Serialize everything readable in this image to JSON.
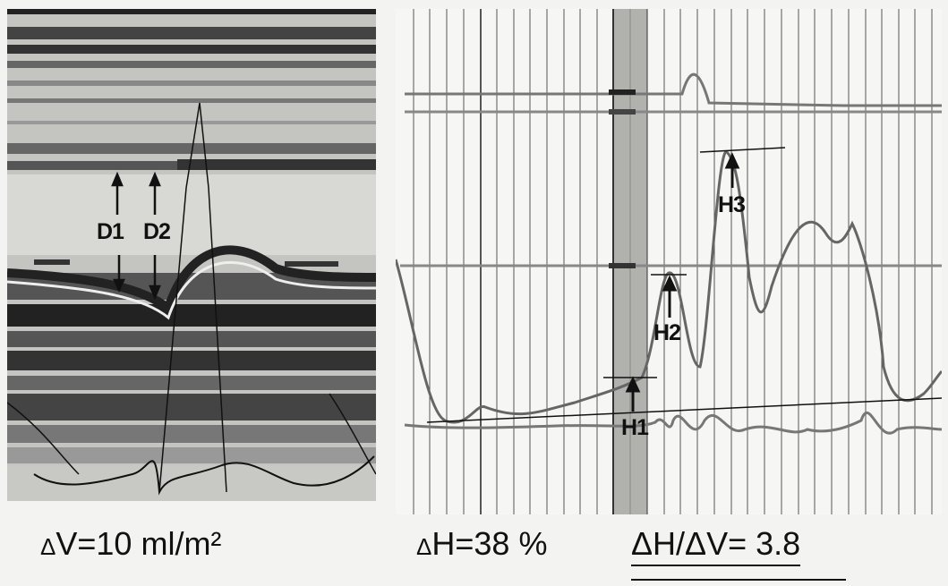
{
  "figure": {
    "left_panel": {
      "labels": {
        "d1": "D1",
        "d2": "D2"
      },
      "caption": {
        "delta": "Δ",
        "text": "V=10 ml/m²"
      }
    },
    "right_panel": {
      "labels": {
        "h1": "H1",
        "h2": "H2",
        "h3": "H3"
      },
      "caption_h": {
        "delta": "Δ",
        "text": "H=38 %"
      },
      "caption_ratio": {
        "text": "ΔH/ΔV= 3.8"
      }
    }
  }
}
